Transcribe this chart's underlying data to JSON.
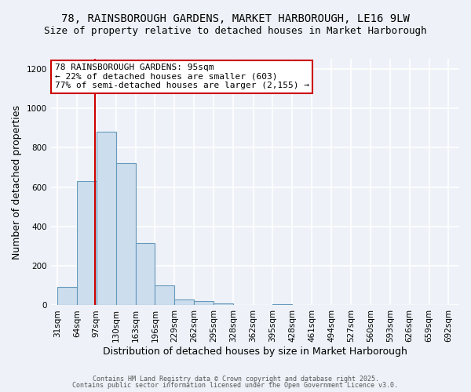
{
  "title_line1": "78, RAINSBOROUGH GARDENS, MARKET HARBOROUGH, LE16 9LW",
  "title_line2": "Size of property relative to detached houses in Market Harborough",
  "xlabel": "Distribution of detached houses by size in Market Harborough",
  "ylabel": "Number of detached properties",
  "bar_color": "#ccdded",
  "bar_edge_color": "#6699bb",
  "bar_left_edges": [
    31,
    64,
    97,
    130,
    163,
    196,
    229,
    262,
    295,
    328,
    362,
    395,
    428,
    461,
    494,
    527,
    560,
    593,
    626,
    659
  ],
  "bar_heights": [
    95,
    630,
    880,
    720,
    315,
    100,
    30,
    20,
    10,
    0,
    0,
    5,
    0,
    0,
    0,
    0,
    0,
    0,
    0,
    0
  ],
  "bin_width": 33,
  "x_tick_labels": [
    "31sqm",
    "64sqm",
    "97sqm",
    "130sqm",
    "163sqm",
    "196sqm",
    "229sqm",
    "262sqm",
    "295sqm",
    "328sqm",
    "362sqm",
    "395sqm",
    "428sqm",
    "461sqm",
    "494sqm",
    "527sqm",
    "560sqm",
    "593sqm",
    "626sqm",
    "659sqm",
    "692sqm"
  ],
  "x_tick_positions": [
    31,
    64,
    97,
    130,
    163,
    196,
    229,
    262,
    295,
    328,
    362,
    395,
    428,
    461,
    494,
    527,
    560,
    593,
    626,
    659,
    692
  ],
  "ylim": [
    0,
    1250
  ],
  "xlim": [
    20,
    710
  ],
  "property_line_x": 95,
  "property_line_color": "#cc0000",
  "annotation_title": "78 RAINSBOROUGH GARDENS: 95sqm",
  "annotation_line1": "← 22% of detached houses are smaller (603)",
  "annotation_line2": "77% of semi-detached houses are larger (2,155) →",
  "annotation_box_color": "#ffffff",
  "annotation_box_edge": "#cc0000",
  "footnote1": "Contains HM Land Registry data © Crown copyright and database right 2025.",
  "footnote2": "Contains public sector information licensed under the Open Government Licence v3.0.",
  "background_color": "#eef2f8",
  "plot_background": "#eef2f8",
  "grid_color": "#ffffff",
  "title_fontsize": 10,
  "subtitle_fontsize": 9,
  "axis_label_fontsize": 9,
  "tick_fontsize": 7.5
}
